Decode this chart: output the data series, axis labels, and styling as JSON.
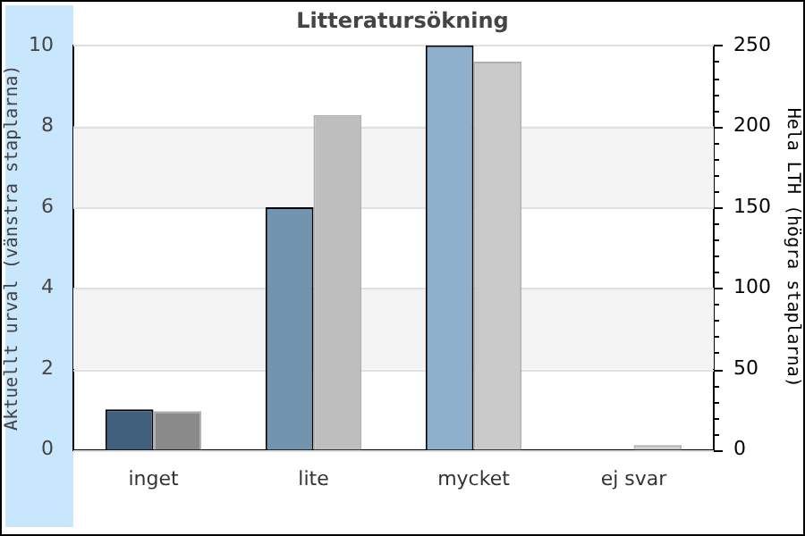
{
  "chart_data": {
    "type": "bar",
    "title": "Litteratursökning",
    "ylabel": "Aktuellt urval (vänstra staplarna)",
    "y2label": "Hela LTH (högra staplarna)",
    "categories": [
      "inget",
      "lite",
      "mycket",
      "ej svar"
    ],
    "series": [
      {
        "colors": [
          "#3f5f7c",
          "#7394ae",
          "#8fb0cc",
          "#8fb0cc"
        ],
        "values": [
          1,
          6,
          10,
          0
        ]
      },
      {
        "colors": [
          "#8a8a8a",
          "#bebebe",
          "#cacaca",
          "#cccccc"
        ],
        "values": [
          24,
          207,
          240,
          3
        ],
        "axis": "y2"
      }
    ],
    "ylim": [
      0,
      10
    ],
    "yticks": [
      0,
      2,
      4,
      6,
      8,
      10
    ],
    "y2lim": [
      0,
      250
    ],
    "y2ticks": [
      0,
      {
        "value": 10,
        "label": null
      },
      {
        "value": 20,
        "label": null
      },
      {
        "value": 30,
        "label": null
      },
      {
        "value": 40,
        "label": null
      },
      50,
      {
        "value": 60,
        "label": null
      },
      {
        "value": 70,
        "label": null
      },
      {
        "value": 80,
        "label": null
      },
      {
        "value": 90,
        "label": null
      },
      100,
      {
        "value": 110,
        "label": null
      },
      {
        "value": 120,
        "label": null
      },
      {
        "value": 130,
        "label": null
      },
      {
        "value": 140,
        "label": null
      },
      150,
      {
        "value": 160,
        "label": null
      },
      {
        "value": 170,
        "label": null
      },
      {
        "value": 180,
        "label": null
      },
      {
        "value": 190,
        "label": null
      },
      200,
      {
        "value": 210,
        "label": null
      },
      {
        "value": 220,
        "label": null
      },
      {
        "value": 230,
        "label": null
      },
      {
        "value": 240,
        "label": null
      },
      250
    ],
    "bands": [
      {
        "axis": "y",
        "from": 2,
        "to": 4,
        "color": "#f3f3f3"
      },
      {
        "axis": "y",
        "from": 6,
        "to": 8,
        "color": "#f3f3f3"
      }
    ],
    "grid": "y",
    "legend": false
  }
}
